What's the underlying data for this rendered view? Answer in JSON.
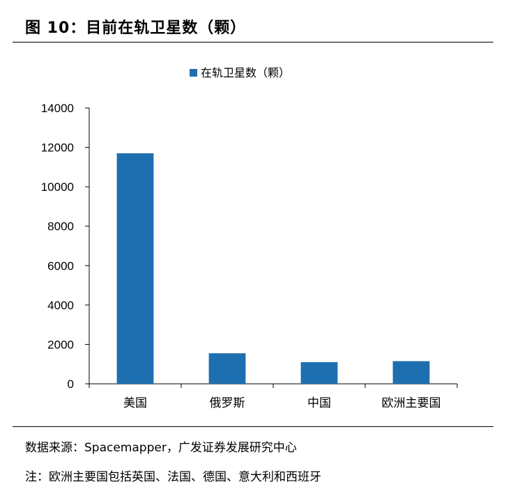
{
  "figure": {
    "title": "图 10：目前在轨卫星数（颗）"
  },
  "chart_data": {
    "type": "bar",
    "title": "",
    "xlabel": "",
    "ylabel": "",
    "categories": [
      "美国",
      "俄罗斯",
      "中国",
      "欧洲主要国"
    ],
    "series": [
      {
        "name": "在轨卫星数（颗）",
        "values": [
          11700,
          1550,
          1100,
          1150
        ],
        "color": "#1e6fb0"
      }
    ],
    "ylim": [
      0,
      14000
    ],
    "yticks": [
      0,
      2000,
      4000,
      6000,
      8000,
      10000,
      12000,
      14000
    ],
    "grid": false,
    "legend_position": "top-center"
  },
  "footer": {
    "source": "数据来源：Spacemapper，广发证券发展研究中心",
    "note": "注：欧洲主要国包括英国、法国、德国、意大利和西班牙"
  }
}
